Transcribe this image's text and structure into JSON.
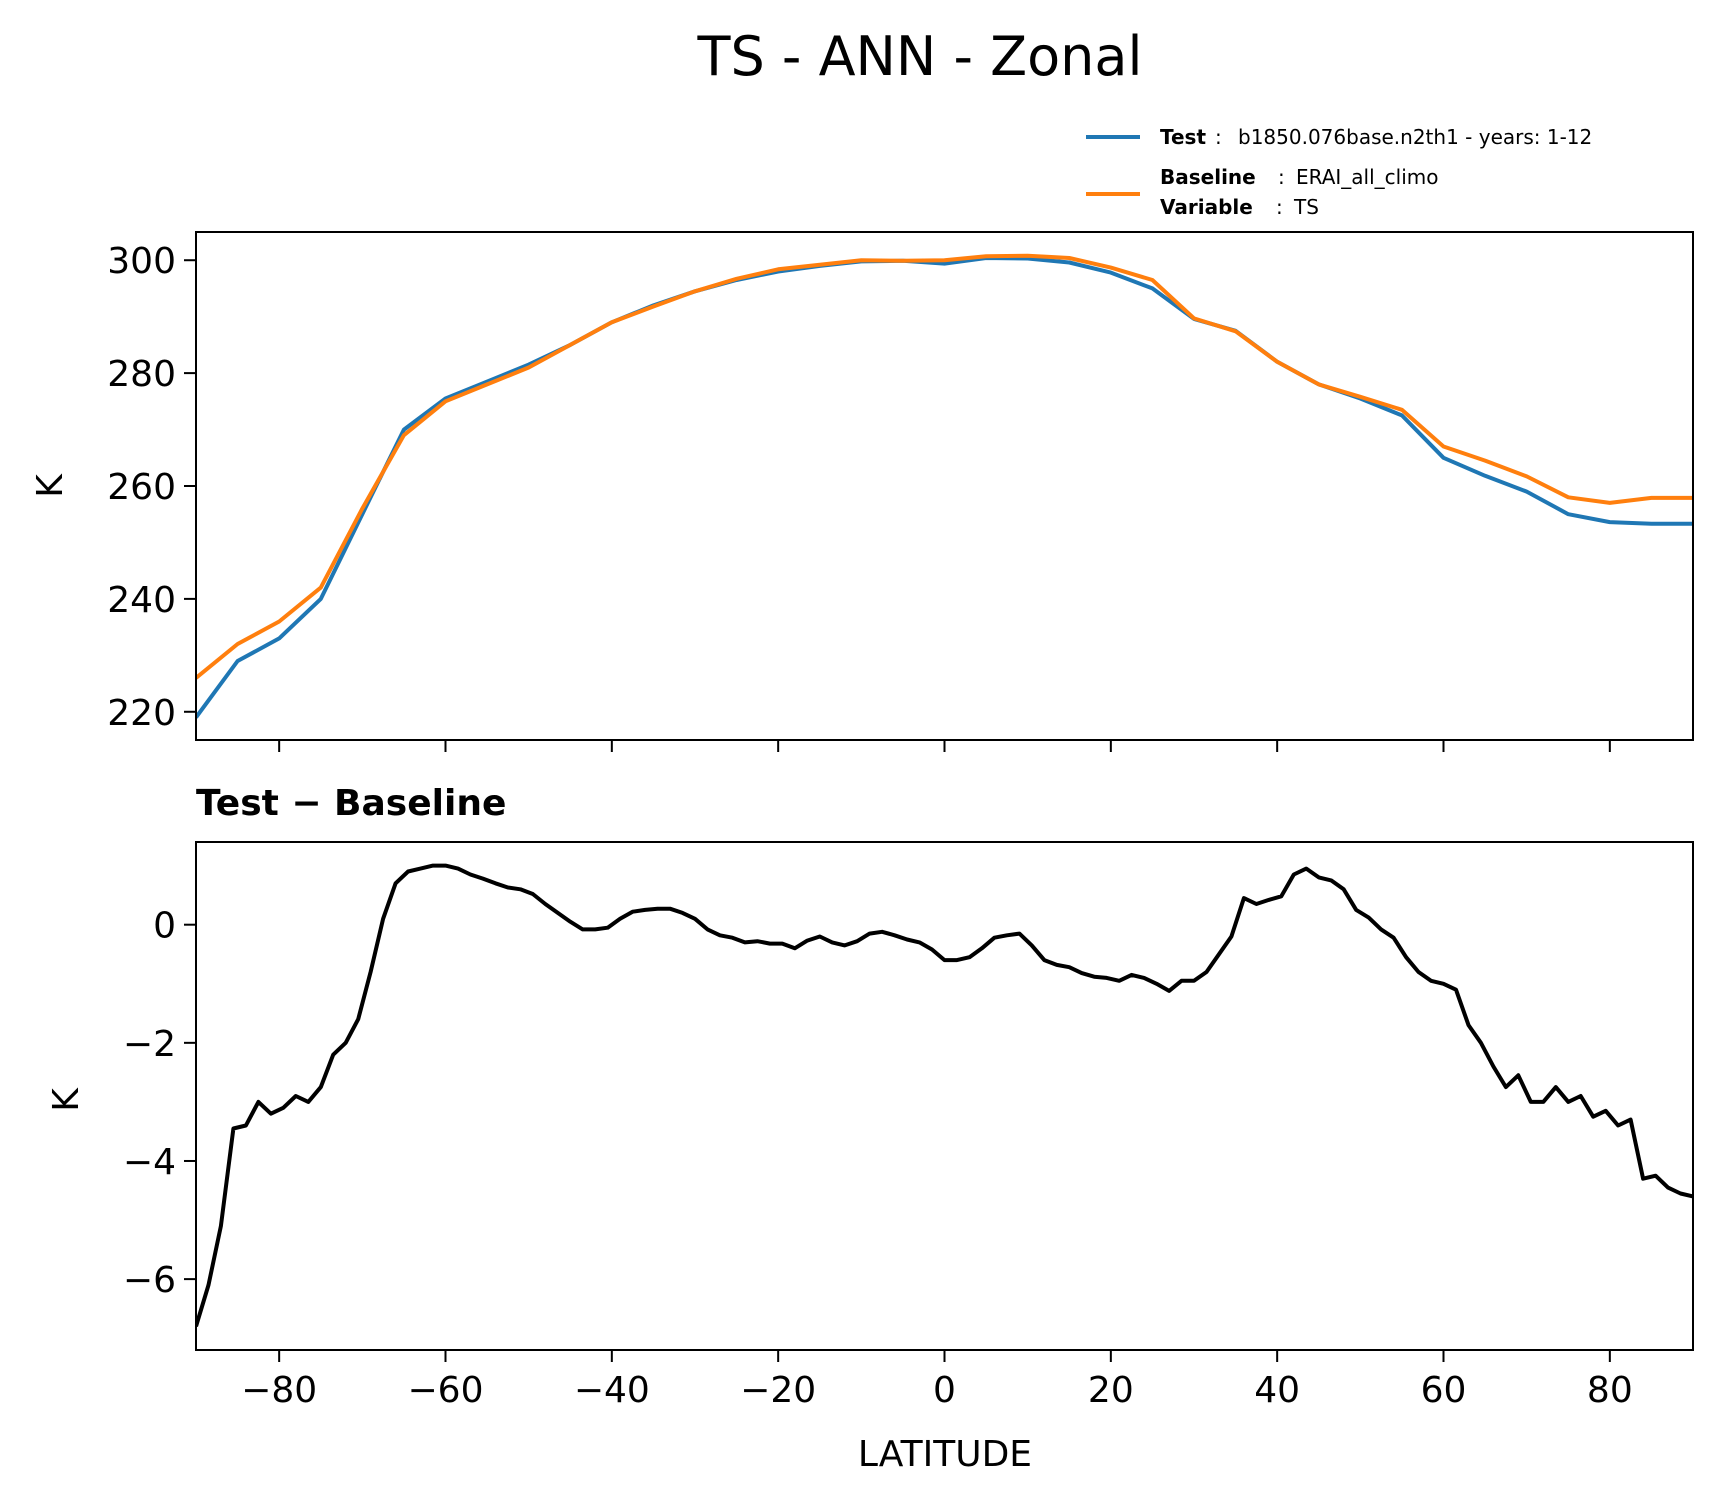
{
  "title": "TS - ANN - Zonal",
  "legend": {
    "test_key": "Test",
    "test_value": "b1850.076base.n2th1 - years: 1-12",
    "baseline_key": "Baseline",
    "baseline_value": "ERAI_all_climo",
    "variable_key": "Variable",
    "variable_value": "TS",
    "separator": ":"
  },
  "colors": {
    "test": "#1f77b4",
    "baseline": "#ff7f0e",
    "difference": "#000000"
  },
  "chart_data": [
    {
      "type": "line",
      "xlabel": "",
      "ylabel": "K",
      "xlim": [
        -90,
        90
      ],
      "ylim": [
        215,
        305
      ],
      "x_ticks": [
        -80,
        -60,
        -40,
        -20,
        0,
        20,
        40,
        60,
        80
      ],
      "y_ticks": [
        220,
        240,
        260,
        280,
        300
      ],
      "legend_position": "top-right, above plot",
      "x": [
        -90,
        -85,
        -80,
        -75,
        -70,
        -65,
        -60,
        -55,
        -50,
        -45,
        -40,
        -35,
        -30,
        -25,
        -20,
        -15,
        -10,
        -5,
        0,
        5,
        10,
        15,
        20,
        25,
        30,
        35,
        40,
        45,
        50,
        55,
        60,
        65,
        70,
        75,
        80,
        85,
        90
      ],
      "series": [
        {
          "name": "Test",
          "values": [
            219,
            229,
            233,
            240,
            255,
            270,
            275.5,
            278.5,
            281.5,
            285,
            289,
            292,
            294.5,
            296.5,
            298,
            299,
            299.8,
            299.9,
            299.4,
            300.4,
            300.3,
            299.6,
            297.8,
            295,
            289.6,
            287.5,
            282,
            278,
            275.5,
            272.5,
            265,
            261.8,
            259,
            255,
            253.6,
            253.3,
            253.3
          ]
        },
        {
          "name": "Baseline",
          "values": [
            226,
            232,
            236,
            242,
            256,
            269,
            275,
            278,
            281,
            285,
            289,
            291.8,
            294.5,
            296.7,
            298.4,
            299.2,
            300,
            299.9,
            300,
            300.7,
            300.8,
            300.4,
            298.7,
            296.5,
            289.7,
            287.4,
            282,
            278,
            275.8,
            273.5,
            267,
            264.5,
            261.7,
            258,
            257,
            257.9,
            257.9
          ]
        }
      ]
    },
    {
      "type": "line",
      "title": "Test − Baseline",
      "xlabel": "LATITUDE",
      "ylabel": "K",
      "xlim": [
        -90,
        90
      ],
      "ylim": [
        -7.2,
        1.4
      ],
      "x_ticks": [
        -80,
        -60,
        -40,
        -20,
        0,
        20,
        40,
        60,
        80
      ],
      "y_ticks": [
        -6,
        -4,
        -2,
        0
      ],
      "x": [
        -90,
        -88.5,
        -87,
        -85.5,
        -84,
        -82.5,
        -81,
        -79.5,
        -78,
        -76.5,
        -75,
        -73.5,
        -72,
        -70.5,
        -69,
        -67.5,
        -66,
        -64.5,
        -63,
        -61.5,
        -60,
        -58.5,
        -57,
        -55.5,
        -54,
        -52.5,
        -51,
        -49.5,
        -48,
        -46.5,
        -45,
        -43.5,
        -42,
        -40.5,
        -39,
        -37.5,
        -36,
        -34.5,
        -33,
        -31.5,
        -30,
        -28.5,
        -27,
        -25.5,
        -24,
        -22.5,
        -21,
        -19.5,
        -18,
        -16.5,
        -15,
        -13.5,
        -12,
        -10.5,
        -9,
        -7.5,
        -6,
        -4.5,
        -3,
        -1.5,
        0,
        1.5,
        3,
        4.5,
        6,
        7.5,
        9,
        10.5,
        12,
        13.5,
        15,
        16.5,
        18,
        19.5,
        21,
        22.5,
        24,
        25.5,
        27,
        28.5,
        30,
        31.5,
        33,
        34.5,
        36,
        37.5,
        39,
        40.5,
        42,
        43.5,
        45,
        46.5,
        48,
        49.5,
        51,
        52.5,
        54,
        55.5,
        57,
        58.5,
        60,
        61.5,
        63,
        64.5,
        66,
        67.5,
        69,
        70.5,
        72,
        73.5,
        75,
        76.5,
        78,
        79.5,
        81,
        82.5,
        84,
        85.5,
        87,
        88.5,
        90
      ],
      "series": [
        {
          "name": "Test − Baseline",
          "values": [
            -6.8,
            -6.1,
            -5.1,
            -3.45,
            -3.4,
            -3.0,
            -3.2,
            -3.1,
            -2.9,
            -3.0,
            -2.75,
            -2.2,
            -2.0,
            -1.6,
            -0.8,
            0.1,
            0.7,
            0.9,
            0.95,
            1.0,
            1.0,
            0.95,
            0.85,
            0.78,
            0.7,
            0.63,
            0.6,
            0.52,
            0.35,
            0.2,
            0.05,
            -0.08,
            -0.08,
            -0.05,
            0.1,
            0.22,
            0.25,
            0.27,
            0.27,
            0.2,
            0.1,
            -0.08,
            -0.18,
            -0.22,
            -0.3,
            -0.28,
            -0.32,
            -0.32,
            -0.4,
            -0.27,
            -0.2,
            -0.3,
            -0.35,
            -0.28,
            -0.15,
            -0.12,
            -0.18,
            -0.25,
            -0.3,
            -0.42,
            -0.6,
            -0.6,
            -0.55,
            -0.4,
            -0.22,
            -0.18,
            -0.15,
            -0.35,
            -0.6,
            -0.68,
            -0.72,
            -0.82,
            -0.88,
            -0.9,
            -0.95,
            -0.85,
            -0.9,
            -1.0,
            -1.12,
            -0.95,
            -0.95,
            -0.8,
            -0.5,
            -0.2,
            0.45,
            0.35,
            0.42,
            0.48,
            0.85,
            0.95,
            0.8,
            0.75,
            0.6,
            0.25,
            0.12,
            -0.08,
            -0.22,
            -0.55,
            -0.8,
            -0.95,
            -1.0,
            -1.1,
            -1.7,
            -2.0,
            -2.4,
            -2.75,
            -2.55,
            -3.0,
            -3.0,
            -2.75,
            -3.0,
            -2.9,
            -3.25,
            -3.15,
            -3.4,
            -3.3,
            -4.3,
            -4.25,
            -4.45,
            -4.55,
            -4.6
          ]
        }
      ]
    }
  ]
}
